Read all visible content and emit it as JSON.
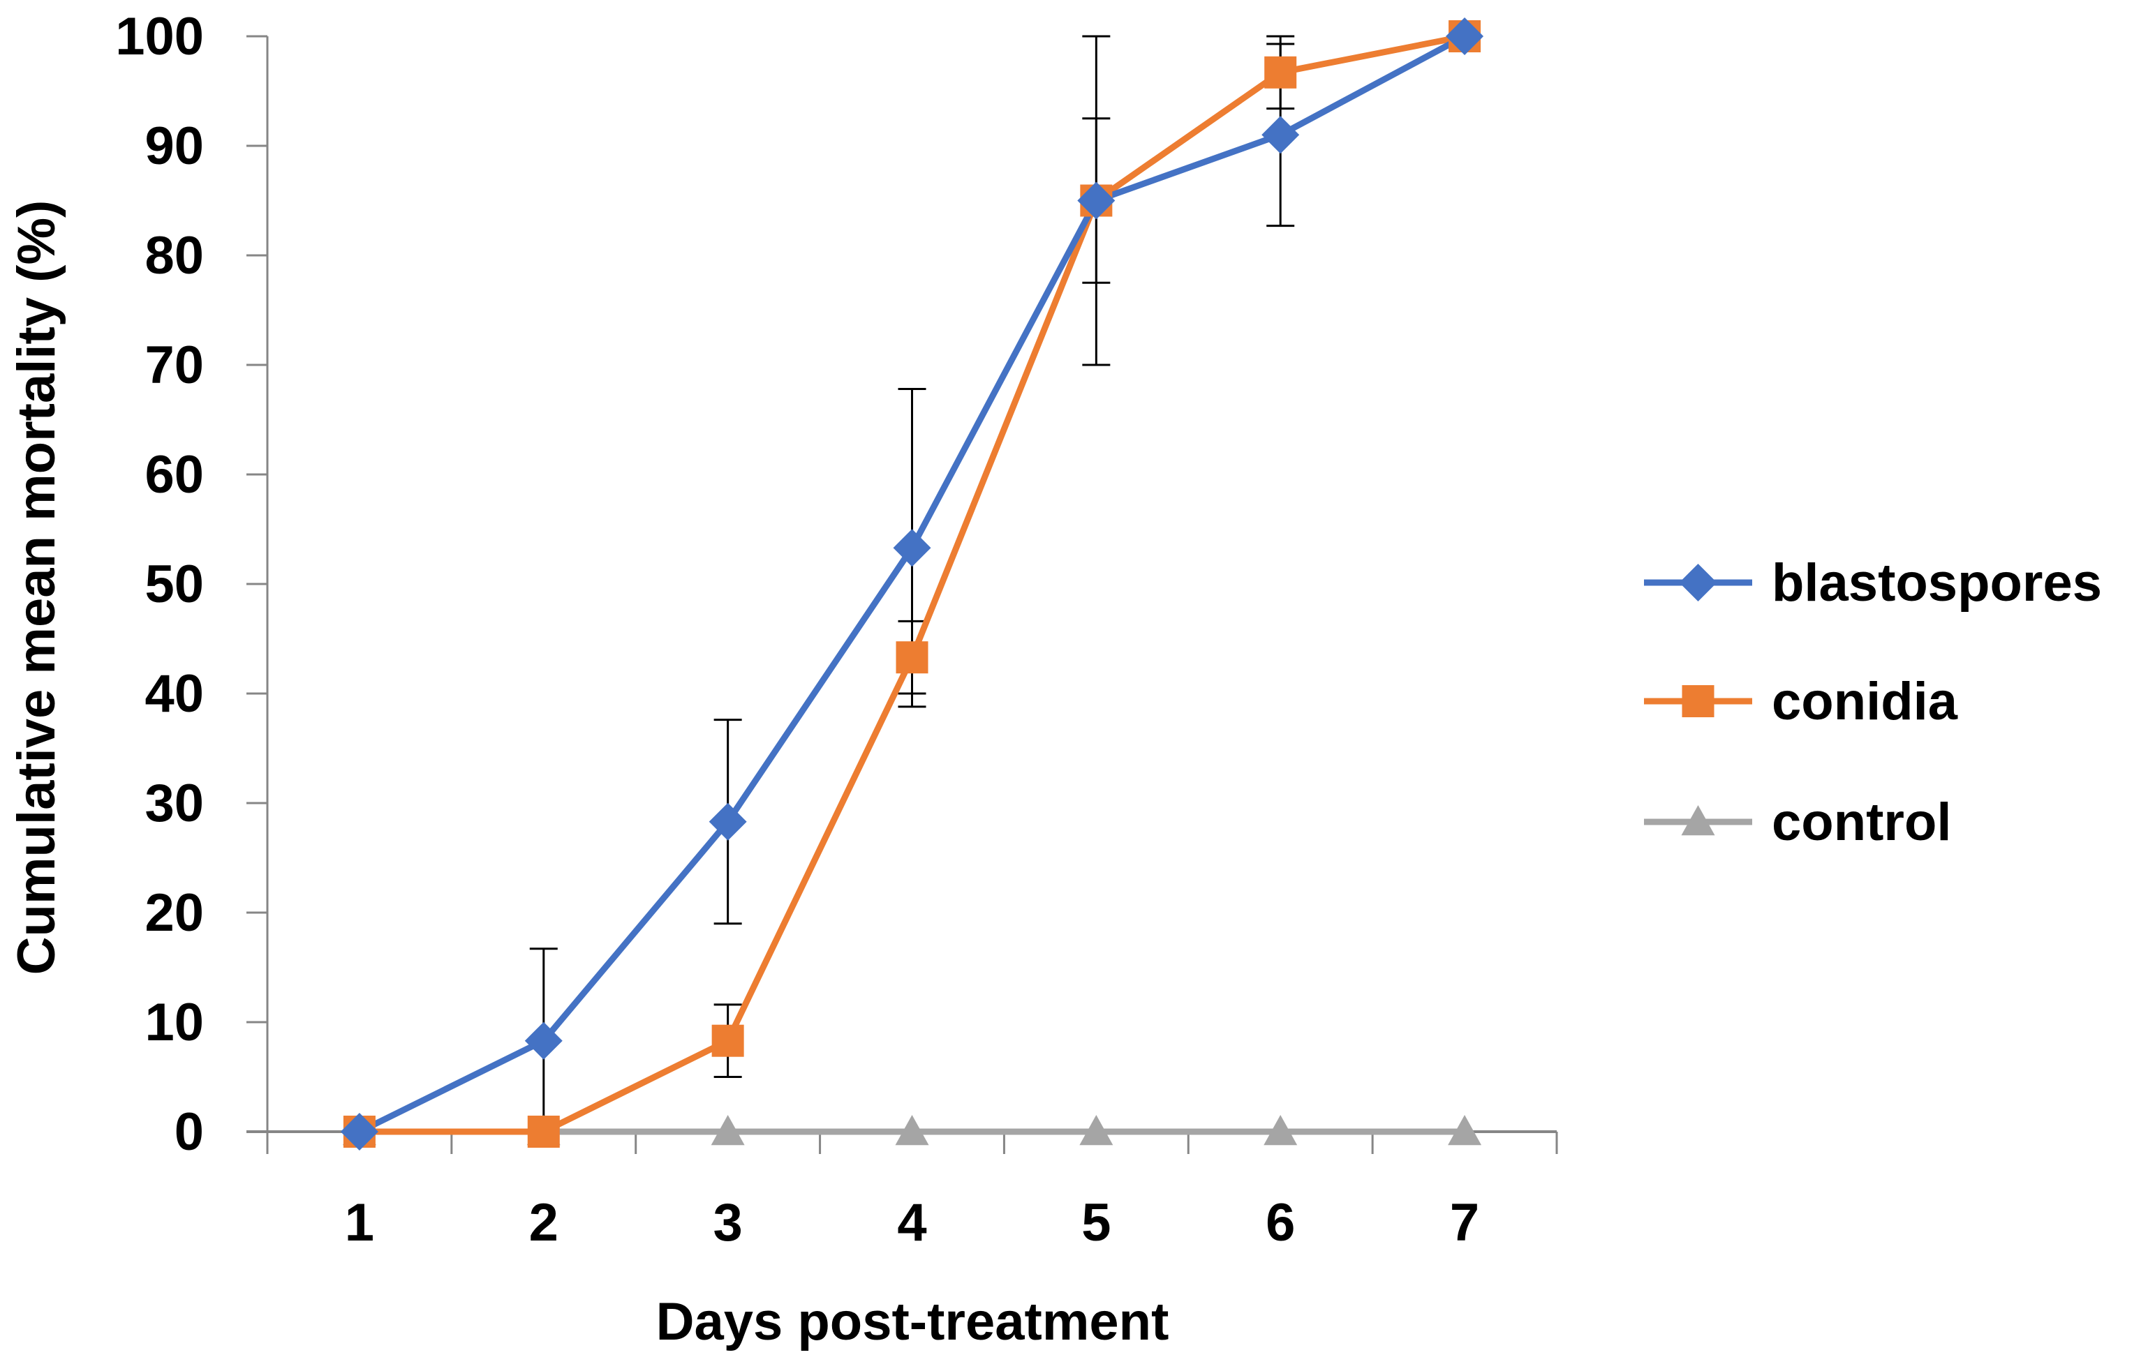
{
  "chart_data": {
    "type": "line",
    "title": "",
    "xlabel": "Days post-treatment",
    "ylabel": "Cumulative mean mortality (%)",
    "x": [
      1,
      2,
      3,
      4,
      5,
      6,
      7
    ],
    "xlim": [
      0.5,
      7.5
    ],
    "ylim": [
      0,
      100
    ],
    "yticks": [
      0,
      10,
      20,
      30,
      40,
      50,
      60,
      70,
      80,
      90,
      100
    ],
    "grid": false,
    "legend_position": "right",
    "series": [
      {
        "name": "blastospores",
        "color": "#4472C4",
        "marker": "diamond",
        "values": [
          0,
          8.3,
          28.3,
          53.3,
          85,
          91,
          100
        ],
        "error": [
          0,
          8.4,
          9.3,
          14.5,
          7.5,
          8.3,
          0
        ]
      },
      {
        "name": "conidia",
        "color": "#ED7D31",
        "marker": "square",
        "values": [
          0,
          0,
          8.3,
          43.3,
          85,
          96.7,
          100
        ],
        "error": [
          0,
          0,
          3.3,
          3.3,
          15,
          3.3,
          0
        ]
      },
      {
        "name": "control",
        "color": "#A5A5A5",
        "marker": "triangle",
        "values": [
          0,
          0,
          0,
          0,
          0,
          0,
          0
        ],
        "error": [
          0,
          0,
          0,
          0,
          0,
          0,
          0
        ]
      }
    ]
  }
}
